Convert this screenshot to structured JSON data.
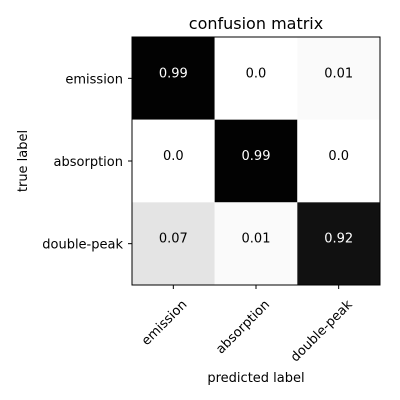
{
  "chart_data": {
    "type": "heatmap",
    "title": "confusion matrix",
    "xlabel": "predicted label",
    "ylabel": "true label",
    "x_categories": [
      "emission",
      "absorption",
      "double-peak"
    ],
    "y_categories": [
      "emission",
      "absorption",
      "double-peak"
    ],
    "values": [
      [
        0.99,
        0.0,
        0.01
      ],
      [
        0.0,
        0.99,
        0.0
      ],
      [
        0.07,
        0.01,
        0.92
      ]
    ],
    "value_labels": [
      [
        "0.99",
        "0.0",
        "0.01"
      ],
      [
        "0.0",
        "0.99",
        "0.0"
      ],
      [
        "0.07",
        "0.01",
        "0.92"
      ]
    ],
    "colormap": "Greys",
    "vrange": [
      0,
      1
    ],
    "x_tick_rotation_deg": 45,
    "grid": false,
    "colors": {
      "low": "#ffffff",
      "high": "#000000"
    }
  }
}
